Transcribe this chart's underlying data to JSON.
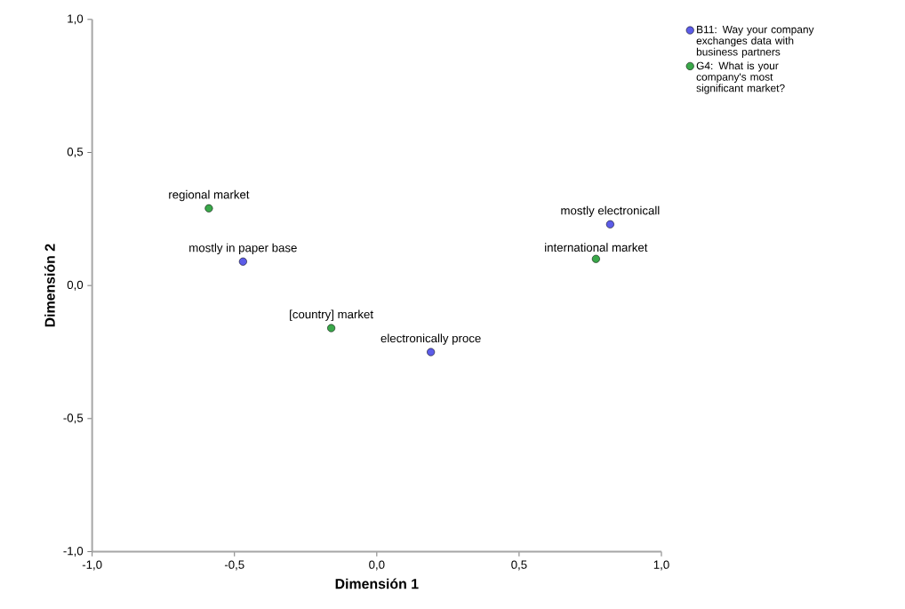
{
  "chart_data": {
    "type": "scatter",
    "xlabel": "Dimensión 1",
    "ylabel": "Dimensión 2",
    "xlim": [
      -1,
      1
    ],
    "ylim": [
      -1,
      1
    ],
    "xticks": [
      {
        "value": -1,
        "label": "-1,0"
      },
      {
        "value": -0.5,
        "label": "-0,5"
      },
      {
        "value": 0,
        "label": "0,0"
      },
      {
        "value": 0.5,
        "label": "0,5"
      },
      {
        "value": 1,
        "label": "1,0"
      }
    ],
    "yticks": [
      {
        "value": -1,
        "label": "-1,0"
      },
      {
        "value": -0.5,
        "label": "-0,5"
      },
      {
        "value": 0,
        "label": "0,0"
      },
      {
        "value": 0.5,
        "label": "0,5"
      },
      {
        "value": 1,
        "label": "1,0"
      }
    ],
    "marker": "circle",
    "legend": "top right",
    "series": [
      {
        "name": "B11: Way your company exchanges data with business partners",
        "color": "#5c5ce8",
        "x": [
          -0.47,
          0.82,
          0.19
        ],
        "values": [
          0.09,
          0.23,
          -0.25
        ]
      },
      {
        "name": "G4: What is your company's most significant market?",
        "color": "#3aa84a",
        "x": [
          -0.59,
          -0.16,
          0.77
        ],
        "values": [
          0.29,
          -0.16,
          0.1
        ]
      }
    ],
    "annotations": [
      {
        "text": "mostly in paper base",
        "x": -0.47,
        "y": 0.09
      },
      {
        "text": "mostly electronicall",
        "x": 0.82,
        "y": 0.23
      },
      {
        "text": "electronically proce",
        "x": 0.19,
        "y": -0.25
      },
      {
        "text": "regional market",
        "x": -0.59,
        "y": 0.29
      },
      {
        "text": "[country] market",
        "x": -0.16,
        "y": -0.16
      },
      {
        "text": "international market",
        "x": 0.77,
        "y": 0.1
      }
    ]
  }
}
